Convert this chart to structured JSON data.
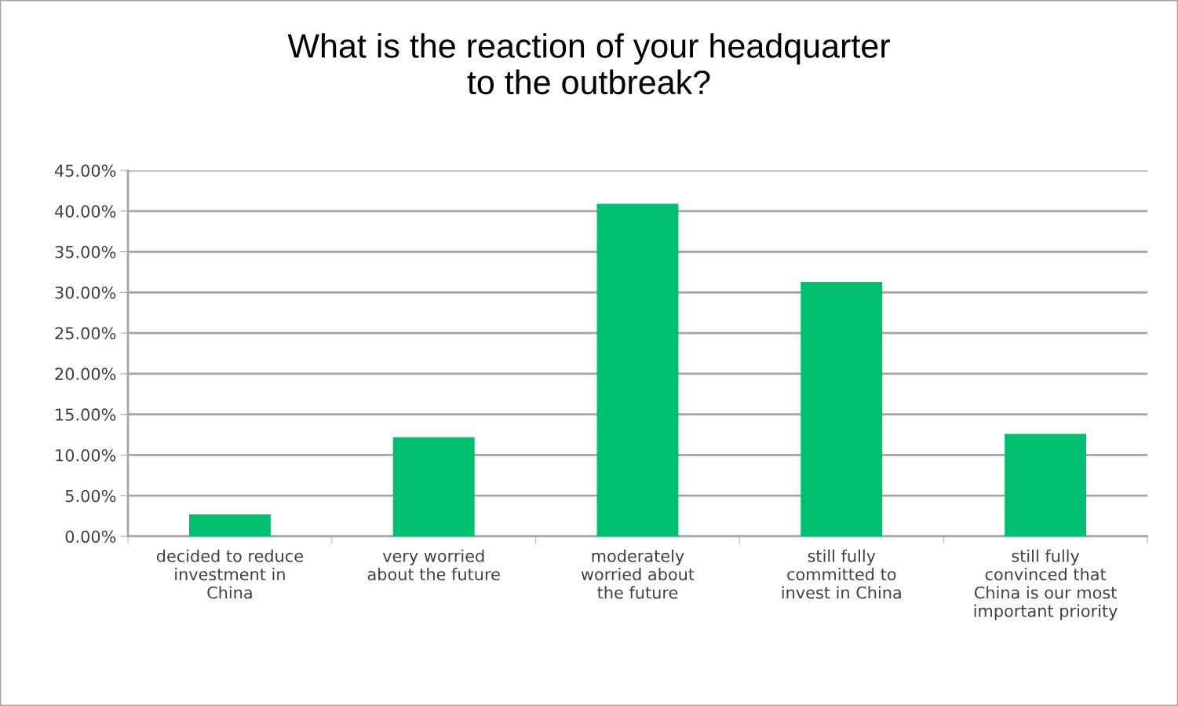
{
  "chart_data": {
    "type": "bar",
    "title": "What is the reaction of your headquarter\nto the outbreak?",
    "categories": [
      "decided to reduce\ninvestment in\nChina",
      "very worried\nabout the future",
      "moderately\nworried about\nthe future",
      "still fully\ncommitted to\ninvest in China",
      "still fully\nconvinced that\nChina is our most\nimportant priority"
    ],
    "values": [
      2.7,
      12.2,
      40.9,
      31.3,
      12.6
    ],
    "color": "#00bf6f",
    "ylim": [
      0,
      45
    ],
    "yticks": [
      {
        "value": 0,
        "label": "0.00%"
      },
      {
        "value": 5,
        "label": "5.00%"
      },
      {
        "value": 10,
        "label": "10.00%"
      },
      {
        "value": 15,
        "label": "15.00%"
      },
      {
        "value": 20,
        "label": "20.00%"
      },
      {
        "value": 25,
        "label": "25.00%"
      },
      {
        "value": 30,
        "label": "30.00%"
      },
      {
        "value": 35,
        "label": "35.00%"
      },
      {
        "value": 40,
        "label": "40.00%"
      },
      {
        "value": 45,
        "label": "45.00%"
      }
    ],
    "grid": "y"
  }
}
